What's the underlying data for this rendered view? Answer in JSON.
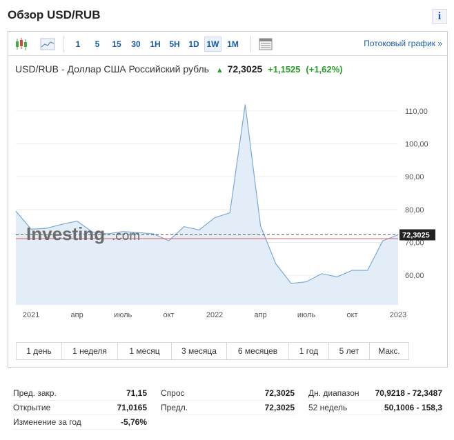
{
  "page_title": "Обзор USD/RUB",
  "info_label": "i",
  "toolbar": {
    "timeframes": [
      "1",
      "5",
      "15",
      "30",
      "1H",
      "5H",
      "1D",
      "1W",
      "1M"
    ],
    "active_timeframe": "1W",
    "stream_link": "Потоковый график »"
  },
  "quote": {
    "name": "USD/RUB - Доллар США Российский рубль",
    "price": "72,3025",
    "change": "+1,1525",
    "change_pct": "(+1,62%)",
    "direction": "up"
  },
  "watermark": {
    "brand": "Investing",
    "suffix": ".com"
  },
  "chart_data": {
    "type": "area",
    "x_tick_labels": [
      "2021",
      "апр",
      "июль",
      "окт",
      "2022",
      "апр",
      "июль",
      "окт",
      "2023"
    ],
    "y_tick_labels": [
      "110,00",
      "100,00",
      "90,00",
      "80,00",
      "70,00",
      "60,00"
    ],
    "y_ticks": [
      110,
      100,
      90,
      80,
      70,
      60
    ],
    "ylim": [
      51,
      119
    ],
    "last_price_label": "72,3025",
    "last_price": 72.3025,
    "prev_close": 71.15,
    "x": [
      "2020-12",
      "2021-01",
      "2021-02",
      "2021-03",
      "2021-04",
      "2021-05",
      "2021-06",
      "2021-07",
      "2021-08",
      "2021-09",
      "2021-10",
      "2021-11",
      "2021-12",
      "2022-01",
      "2022-02",
      "2022-03",
      "2022-04",
      "2022-05",
      "2022-06",
      "2022-07",
      "2022-08",
      "2022-09",
      "2022-10",
      "2022-11",
      "2022-12",
      "2023-01"
    ],
    "values": [
      79.5,
      74.0,
      74.3,
      75.5,
      76.5,
      73.2,
      72.6,
      73.3,
      73.0,
      72.6,
      70.5,
      74.8,
      73.8,
      77.5,
      79.0,
      112.0,
      75.0,
      63.5,
      57.5,
      58.0,
      60.5,
      59.5,
      61.5,
      61.5,
      70.5,
      72.3
    ],
    "grid": "horizontal",
    "colors": {
      "line": "#7ba9d6",
      "fill": "#e2edf8",
      "last_price_box": "#222222",
      "prev_close_line": "#e06060"
    }
  },
  "periods": [
    "1 день",
    "1 неделя",
    "1 месяц",
    "3 месяца",
    "6 месяцев",
    "1 год",
    "5 лет",
    "Макс."
  ],
  "stats": {
    "col1": [
      {
        "label": "Пред. закр.",
        "value": "71,15"
      },
      {
        "label": "Открытие",
        "value": "71,0165"
      },
      {
        "label": "Изменение за год",
        "value": "-5,76%"
      }
    ],
    "col2": [
      {
        "label": "Спрос",
        "value": "72,3025"
      },
      {
        "label": "Предл.",
        "value": "72,3025"
      }
    ],
    "col3": [
      {
        "label": "Дн. диапазон",
        "value": "70,9218 - 72,3487"
      },
      {
        "label": "52 недель",
        "value": "50,1006 - 158,3"
      }
    ]
  },
  "icons": [
    "candlestick-icon",
    "area-chart-icon",
    "table-view-icon",
    "up-arrow-icon"
  ]
}
